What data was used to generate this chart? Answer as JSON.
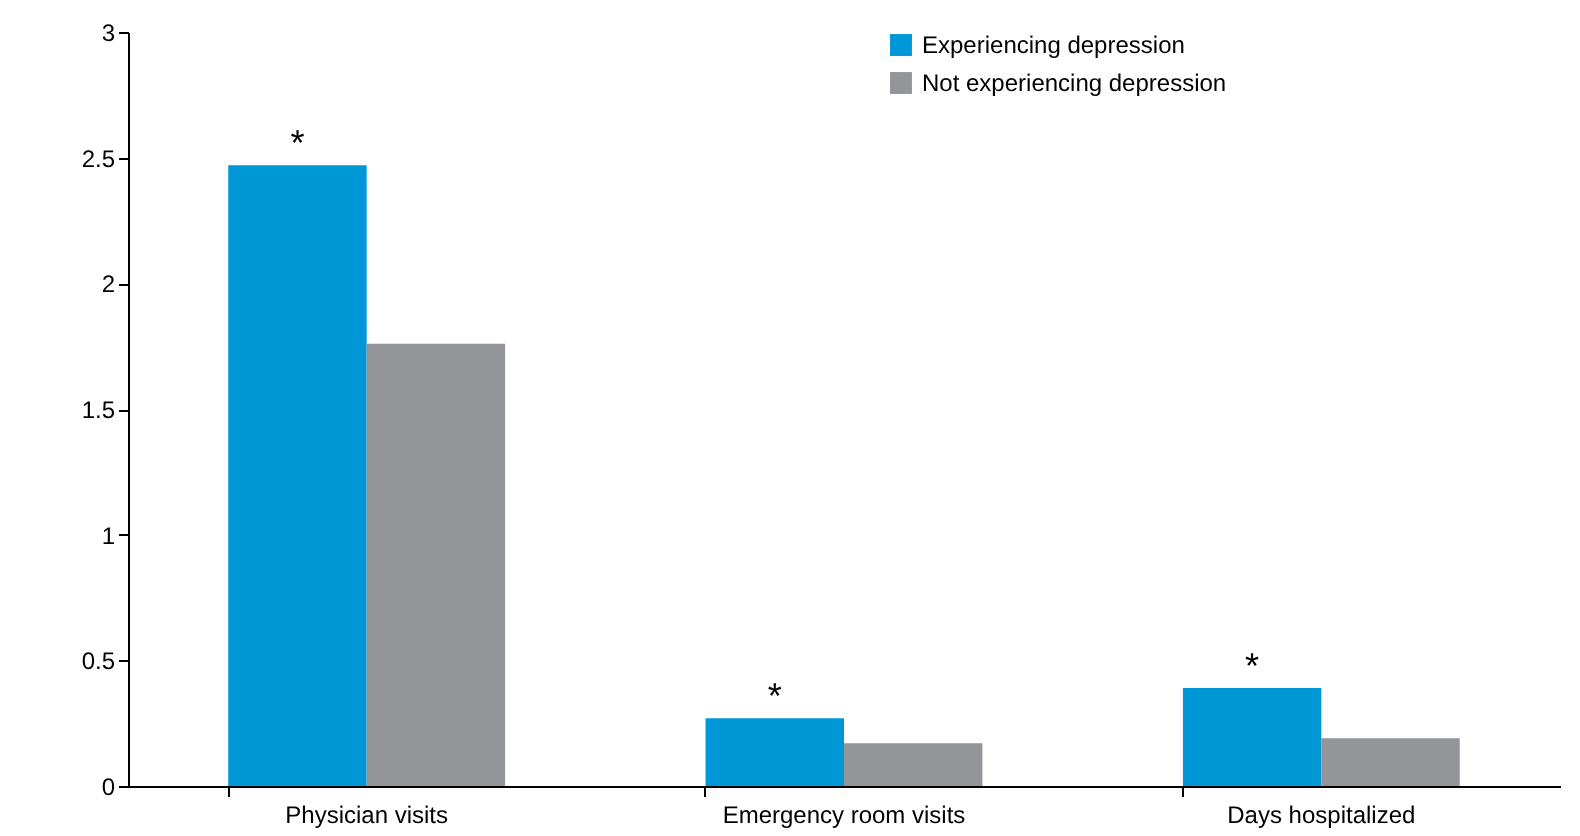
{
  "chart_data": {
    "type": "bar",
    "categories": [
      "Physician visits",
      "Emergency room visits",
      "Days hospitalized"
    ],
    "series": [
      {
        "name": "Experiencing depression",
        "color": "#0097d6",
        "values": [
          2.47,
          0.27,
          0.39
        ]
      },
      {
        "name": "Not experiencing depression",
        "color": "#939598",
        "values": [
          1.76,
          0.17,
          0.19
        ]
      }
    ],
    "ylim": [
      0,
      3
    ],
    "yticks": [
      0,
      0.5,
      1,
      1.5,
      2,
      2.5,
      3
    ],
    "grid": false,
    "legend": "top",
    "annotations": [
      {
        "text": "*",
        "x": "Physician visits",
        "y": 2.47
      },
      {
        "text": "*",
        "x": "Emergency room visits",
        "y": 0.27
      },
      {
        "text": "*",
        "x": "Days hospitalized",
        "y": 0.39
      }
    ]
  }
}
